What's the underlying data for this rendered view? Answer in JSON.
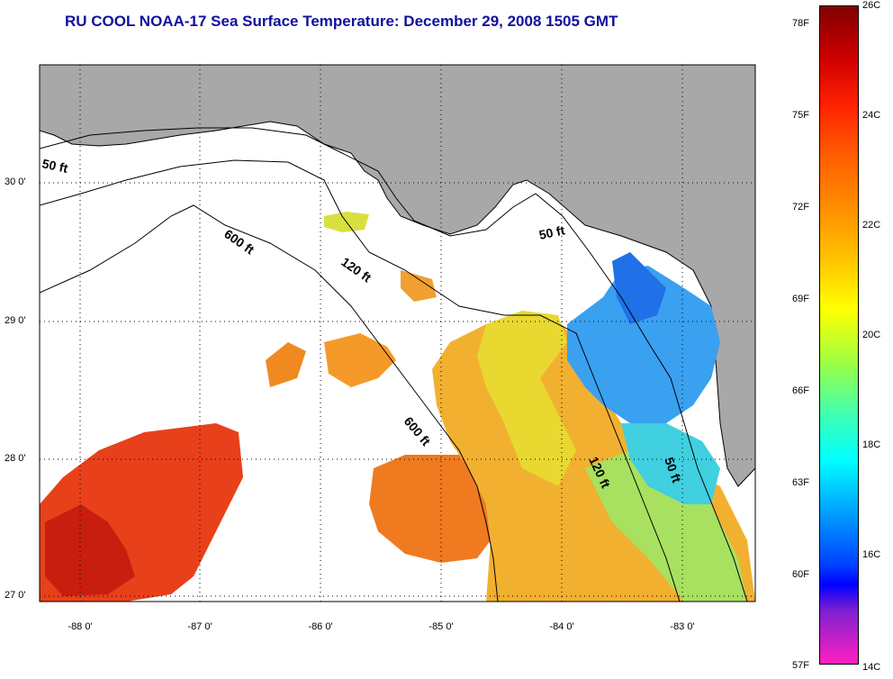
{
  "title": "RU COOL  NOAA-17  Sea Surface Temperature:  December 29, 2008 1505 GMT",
  "map": {
    "lon_range": [
      -88.3,
      -82.4
    ],
    "lat_range": [
      26.95,
      30.88
    ],
    "lat_ticks": [
      {
        "value": 30,
        "label": "30 0'"
      },
      {
        "value": 29,
        "label": "29 0'"
      },
      {
        "value": 28,
        "label": "28 0'"
      },
      {
        "value": 27,
        "label": "27 0'"
      }
    ],
    "lon_ticks": [
      {
        "value": -88,
        "label": "-88 0'"
      },
      {
        "value": -87,
        "label": "-87 0'"
      },
      {
        "value": -86,
        "label": "-86 0'"
      },
      {
        "value": -85,
        "label": "-85 0'"
      },
      {
        "value": -84,
        "label": "-84 0'"
      },
      {
        "value": -83,
        "label": "-83 0'"
      }
    ],
    "contour_labels": [
      {
        "text": "50 ft"
      },
      {
        "text": "600 ft"
      },
      {
        "text": "120 ft"
      },
      {
        "text": "50 ft"
      },
      {
        "text": "600 ft"
      },
      {
        "text": "120 ft"
      },
      {
        "text": "50 ft"
      }
    ],
    "colors": {
      "land": "#a8a8a8",
      "water_nodata": "#ffffff",
      "grid": "#000000"
    }
  },
  "colorbar": {
    "range_c": [
      14,
      26
    ],
    "range_f": [
      57,
      79
    ],
    "celsius_labels": [
      "26C",
      "24C",
      "22C",
      "20C",
      "18C",
      "16C",
      "14C"
    ],
    "fahrenheit_labels": [
      "78F",
      "75F",
      "72F",
      "69F",
      "66F",
      "63F",
      "60F",
      "57F"
    ]
  }
}
